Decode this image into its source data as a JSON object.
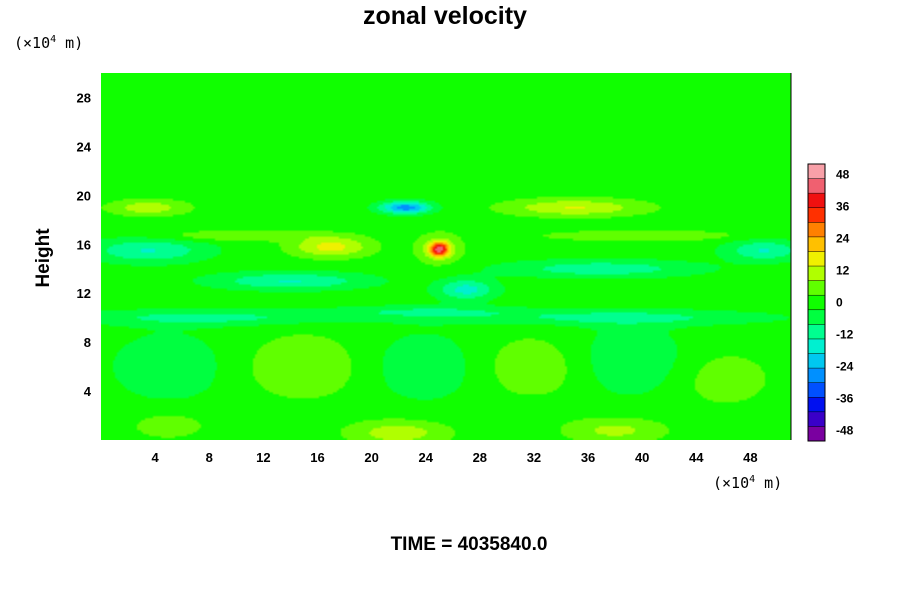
{
  "chart_data": {
    "type": "heatmap",
    "title": "zonal velocity",
    "ylabel": "Height",
    "xlabel": "",
    "x_unit_prefix": "(×10",
    "x_unit_exp": "4",
    "x_unit_suffix": " m)",
    "y_unit_prefix": "(×10",
    "y_unit_exp": "4",
    "y_unit_suffix": " m)",
    "xlim": [
      0,
      51
    ],
    "ylim": [
      0,
      30
    ],
    "xticks": [
      "4",
      "8",
      "12",
      "16",
      "20",
      "24",
      "28",
      "32",
      "36",
      "40",
      "44",
      "48"
    ],
    "yticks": [
      "4",
      "8",
      "12",
      "16",
      "20",
      "24",
      "28"
    ],
    "colorbar": {
      "ticks": [
        "48",
        "36",
        "24",
        "12",
        "0",
        "-12",
        "-24",
        "-36",
        "-48"
      ],
      "range": [
        -52,
        52
      ],
      "colors": [
        "#7a00a0",
        "#3a00c8",
        "#0010f0",
        "#0050ff",
        "#0090ff",
        "#00c8f0",
        "#00f0d0",
        "#00ff90",
        "#00ff40",
        "#10ff00",
        "#60ff00",
        "#b0ff00",
        "#f0f000",
        "#ffc000",
        "#ff8000",
        "#ff3000",
        "#f01010",
        "#f06070",
        "#f8a0a8"
      ]
    },
    "background_value": 0,
    "features": [
      {
        "x": 25,
        "y": 15.6,
        "sx": 0.5,
        "sy": 0.4,
        "value": 36
      },
      {
        "x": 25,
        "y": 15.6,
        "sx": 1.2,
        "sy": 0.9,
        "value": 10
      },
      {
        "x": 22.5,
        "y": 19,
        "sx": 1.3,
        "sy": 0.35,
        "value": -28
      },
      {
        "x": 17,
        "y": 15.8,
        "sx": 2.0,
        "sy": 0.6,
        "value": 16
      },
      {
        "x": 35,
        "y": 19,
        "sx": 3.5,
        "sy": 0.5,
        "value": 14
      },
      {
        "x": 3.5,
        "y": 19,
        "sx": 2.0,
        "sy": 0.45,
        "value": 12
      },
      {
        "x": 3.5,
        "y": 15.5,
        "sx": 3.0,
        "sy": 0.7,
        "value": -14
      },
      {
        "x": 14,
        "y": 13,
        "sx": 4.0,
        "sy": 0.5,
        "value": -14
      },
      {
        "x": 37,
        "y": 14,
        "sx": 5.0,
        "sy": 0.5,
        "value": -12
      },
      {
        "x": 49,
        "y": 15.5,
        "sx": 2.0,
        "sy": 0.6,
        "value": -14
      },
      {
        "x": 27,
        "y": 12.3,
        "sx": 1.5,
        "sy": 0.6,
        "value": -16
      },
      {
        "x": 8,
        "y": 10,
        "sx": 7.0,
        "sy": 0.45,
        "value": -10
      },
      {
        "x": 38,
        "y": 10,
        "sx": 8.0,
        "sy": 0.45,
        "value": -10
      },
      {
        "x": 24,
        "y": 10.5,
        "sx": 5.0,
        "sy": 0.35,
        "value": -8
      },
      {
        "x": 10,
        "y": 16.7,
        "sx": 4.0,
        "sy": 0.3,
        "value": 8
      },
      {
        "x": 40,
        "y": 16.7,
        "sx": 5.0,
        "sy": 0.3,
        "value": 8
      },
      {
        "x": 15,
        "y": 6,
        "sx": 3.0,
        "sy": 1.8,
        "value": 8
      },
      {
        "x": 32,
        "y": 6,
        "sx": 3.0,
        "sy": 1.8,
        "value": 7
      },
      {
        "x": 46,
        "y": 5,
        "sx": 2.5,
        "sy": 1.6,
        "value": 6
      },
      {
        "x": 5,
        "y": 6,
        "sx": 3.0,
        "sy": 2.0,
        "value": -7
      },
      {
        "x": 24,
        "y": 6,
        "sx": 3.0,
        "sy": 2.0,
        "value": -7
      },
      {
        "x": 39,
        "y": 6.5,
        "sx": 3.0,
        "sy": 2.0,
        "value": -8
      },
      {
        "x": 22,
        "y": 0.6,
        "sx": 2.5,
        "sy": 0.7,
        "value": 12
      },
      {
        "x": 38,
        "y": 0.8,
        "sx": 2.5,
        "sy": 0.7,
        "value": 10
      },
      {
        "x": 5,
        "y": 1.2,
        "sx": 2.0,
        "sy": 0.8,
        "value": 6
      }
    ]
  },
  "time_label": "TIME = 4035840.0"
}
